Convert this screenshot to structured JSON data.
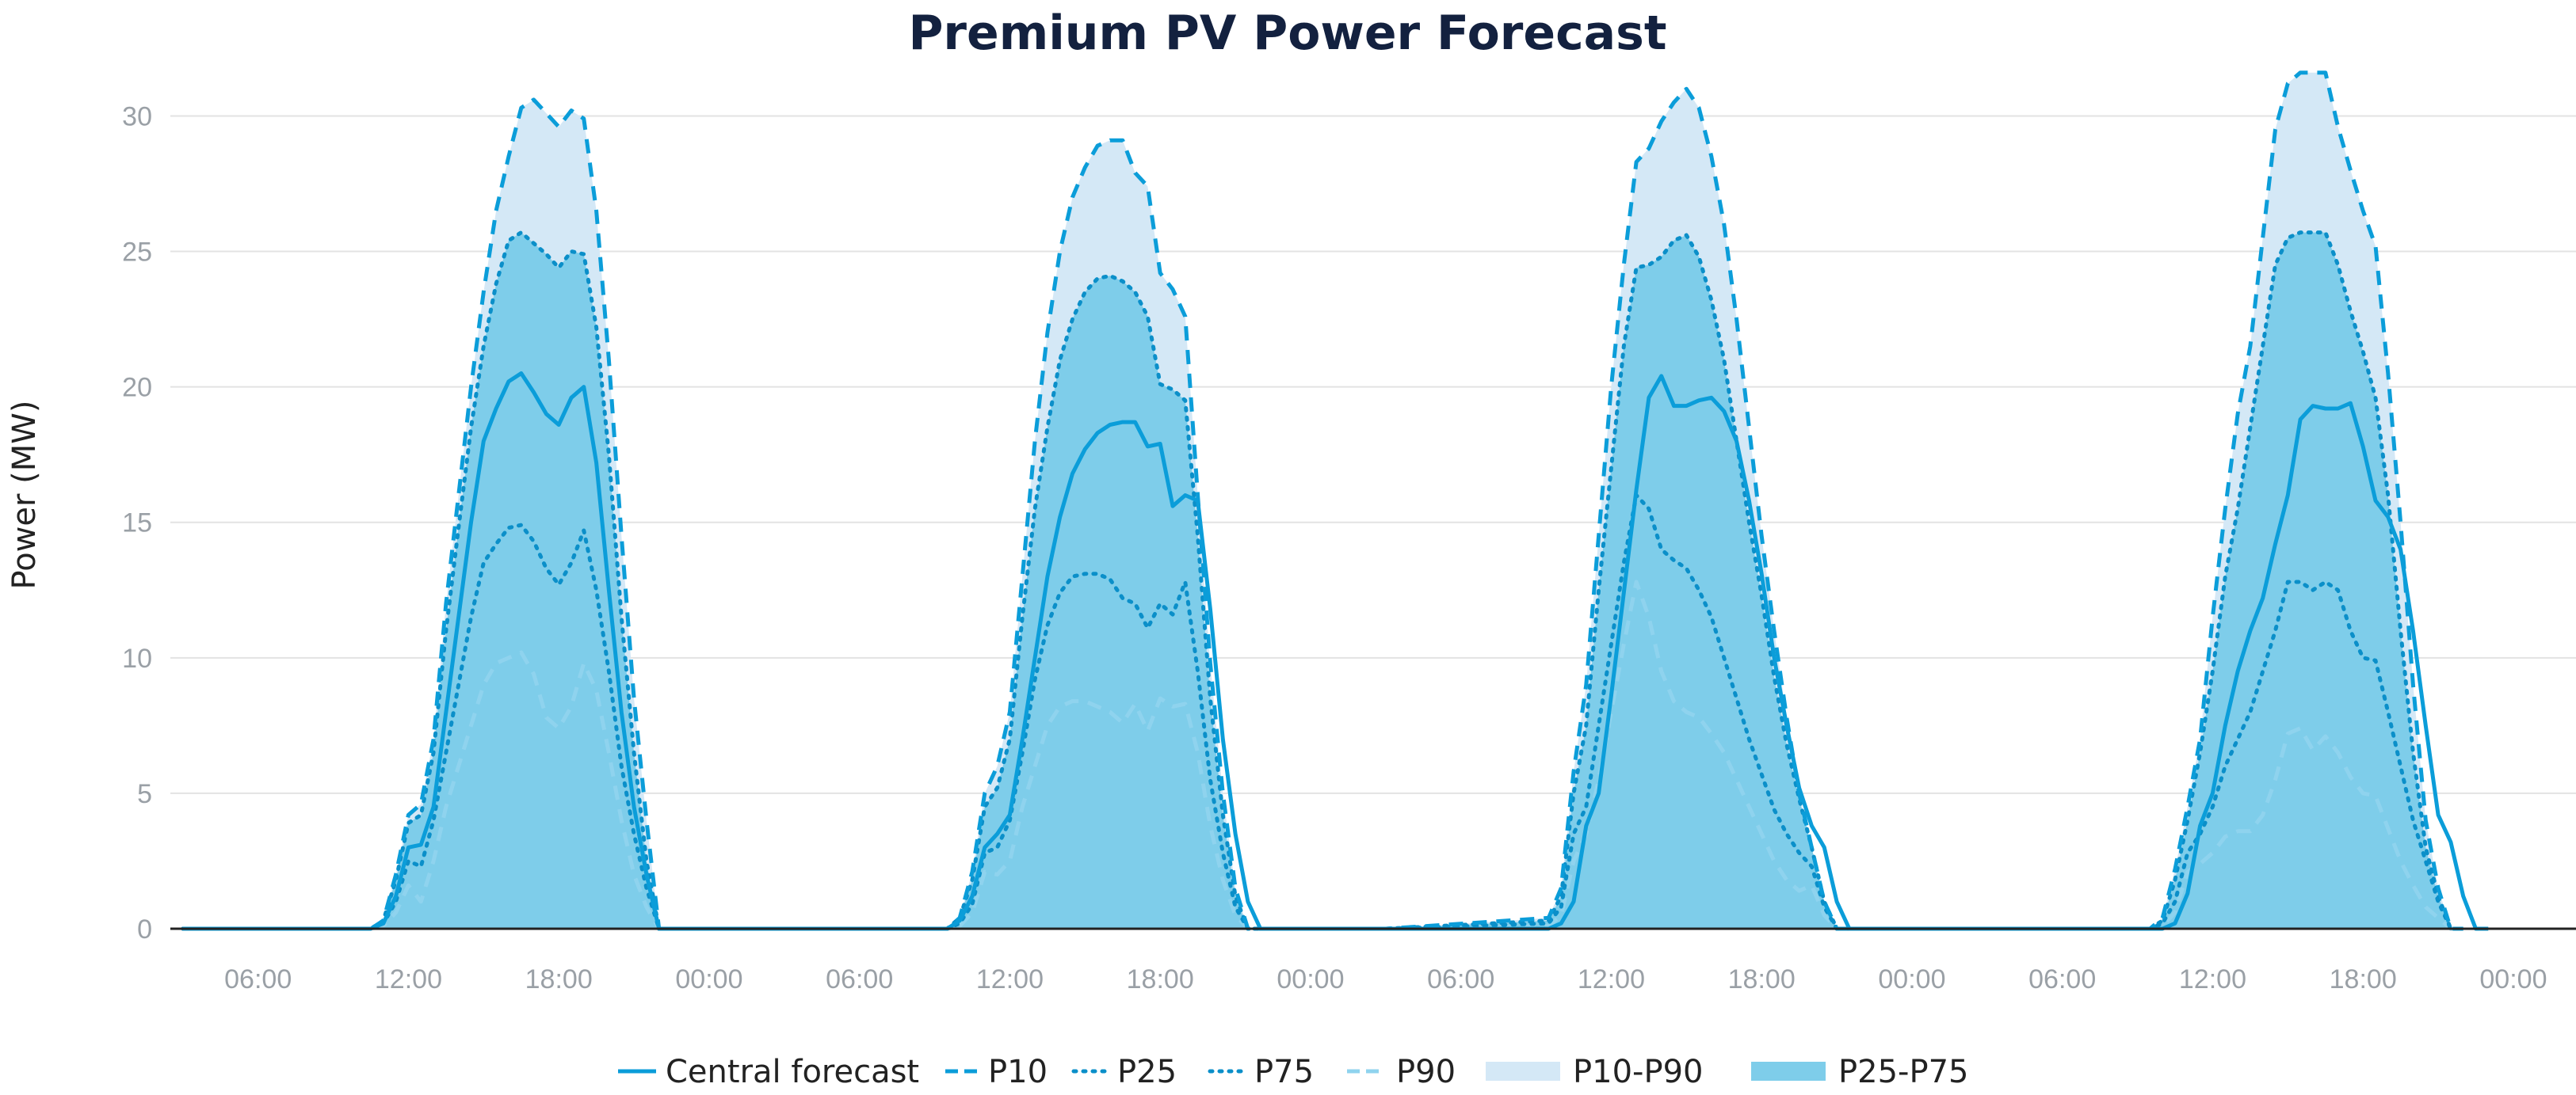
{
  "chart_data": {
    "type": "line",
    "title": "Premium PV Power Forecast",
    "xlabel": "",
    "ylabel": "Power (MW)",
    "ylim": [
      0,
      32
    ],
    "yticks": [
      0,
      5,
      10,
      15,
      20,
      25,
      30
    ],
    "xlim": [
      2.5,
      98.5
    ],
    "x_unit": "hours from first midnight",
    "xticks": [
      {
        "x": 6,
        "label": "06:00"
      },
      {
        "x": 12,
        "label": "12:00"
      },
      {
        "x": 18,
        "label": "18:00"
      },
      {
        "x": 24,
        "label": "00:00"
      },
      {
        "x": 30,
        "label": "06:00"
      },
      {
        "x": 36,
        "label": "12:00"
      },
      {
        "x": 42,
        "label": "18:00"
      },
      {
        "x": 48,
        "label": "00:00"
      },
      {
        "x": 54,
        "label": "06:00"
      },
      {
        "x": 60,
        "label": "12:00"
      },
      {
        "x": 66,
        "label": "18:00"
      },
      {
        "x": 72,
        "label": "00:00"
      },
      {
        "x": 78,
        "label": "06:00"
      },
      {
        "x": 84,
        "label": "12:00"
      },
      {
        "x": 90,
        "label": "18:00"
      },
      {
        "x": 96,
        "label": "00:00"
      }
    ],
    "grid": true,
    "legend_position": "bottom",
    "colors": {
      "central": "#0b9dd9",
      "p10": "#0b9dd9",
      "p25": "#0b8fc9",
      "p75": "#0b8fc9",
      "p90": "#8fd3ee",
      "band_p10_p90": "#d4e8f6",
      "band_p25_p75": "#7ecdea"
    },
    "series_x": [
      3,
      10,
      10.5,
      11,
      11.5,
      12,
      12.5,
      13,
      13.5,
      14,
      14.5,
      15,
      15.5,
      16,
      16.5,
      17,
      17.5,
      18,
      18.5,
      19,
      19.5,
      20,
      20.5,
      21,
      21.5,
      22,
      22.5,
      23,
      23.5,
      24,
      27,
      33.5,
      34,
      34.5,
      35,
      35.5,
      36,
      36.5,
      37,
      37.5,
      38,
      38.5,
      39,
      39.5,
      40,
      40.5,
      41,
      41.5,
      42,
      42.5,
      43,
      43.5,
      44,
      44.5,
      45,
      45.5,
      46,
      46.5,
      47,
      47.5,
      48,
      51,
      57.5,
      58,
      58.5,
      59,
      59.5,
      60,
      60.5,
      61,
      61.5,
      62,
      62.5,
      63,
      63.5,
      64,
      64.5,
      65,
      65.5,
      66,
      66.5,
      67,
      67.5,
      68,
      68.5,
      69,
      69.5,
      70,
      70.5,
      71,
      71.5,
      72,
      75,
      81.5,
      82,
      82.5,
      83,
      83.5,
      84,
      84.5,
      85,
      85.5,
      86,
      86.5,
      87,
      87.5,
      88,
      88.5,
      89,
      89.5,
      90,
      90.5,
      91,
      91.5,
      92,
      92.5,
      93,
      93.5,
      94,
      94.5,
      95,
      95.5,
      96,
      98
    ],
    "series": [
      {
        "name": "Central forecast",
        "style": "solid",
        "values": [
          0,
          0,
          0,
          0.2,
          1.2,
          3,
          3.1,
          4.5,
          8,
          11.5,
          15,
          18,
          19.2,
          20.2,
          20.5,
          19.8,
          19,
          18.6,
          19.6,
          20,
          17.2,
          12.5,
          8,
          4.5,
          2,
          0,
          0,
          0,
          0,
          0,
          0,
          0,
          0.3,
          1.2,
          3,
          3.5,
          4.2,
          7,
          10,
          13,
          15.2,
          16.8,
          17.7,
          18.3,
          18.6,
          18.7,
          18.7,
          17.8,
          17.9,
          15.6,
          16,
          15.8,
          11.8,
          7,
          3.5,
          1,
          0,
          0,
          0,
          0,
          0,
          0,
          0,
          0.2,
          1,
          3.8,
          5,
          8.6,
          12.4,
          16.2,
          19.6,
          20.4,
          19.3,
          19.3,
          19.5,
          19.6,
          19.1,
          18,
          15.8,
          13.1,
          10,
          7.5,
          5.2,
          3.8,
          3,
          1,
          0,
          0,
          0,
          0,
          0,
          0,
          0,
          0,
          0,
          0.2,
          1.3,
          3.8,
          5,
          7.5,
          9.5,
          11,
          12.2,
          14.2,
          16,
          18.8,
          19.3,
          19.2,
          19.2,
          19.4,
          17.8,
          15.8,
          15.2,
          14,
          11,
          7.5,
          4.2,
          3.2,
          1.2,
          0,
          0
        ]
      },
      {
        "name": "P10",
        "style": "dashed",
        "values": [
          0,
          0,
          0,
          0.3,
          2,
          4.2,
          4.6,
          7,
          12,
          16,
          20,
          23.5,
          26.5,
          28.5,
          30.3,
          30.6,
          30.1,
          29.6,
          30.2,
          29.9,
          26.5,
          21,
          14.5,
          8.5,
          4,
          0,
          0,
          0,
          0,
          0,
          0,
          0,
          0.4,
          2.1,
          5,
          6,
          8,
          13,
          18,
          22,
          25,
          27,
          28.1,
          28.9,
          29.1,
          29.1,
          27.9,
          27.4,
          24.2,
          23.6,
          22.6,
          16,
          9.8,
          5,
          1.5,
          0,
          0,
          0,
          0,
          0,
          0,
          0,
          0.4,
          1.5,
          5.8,
          9,
          14.5,
          20,
          24.5,
          28.3,
          28.8,
          29.8,
          30.5,
          31,
          30.3,
          28.5,
          26,
          22.5,
          18.5,
          14.5,
          11,
          7.8,
          5,
          3,
          1,
          0,
          0,
          0,
          0,
          0,
          0,
          0,
          0,
          0,
          0.4,
          2.2,
          4.5,
          7,
          11.5,
          15.5,
          19,
          21.5,
          25.5,
          29.5,
          31.2,
          31.6,
          31.6,
          31.6,
          29.6,
          28,
          26.5,
          25.2,
          20.5,
          15,
          9,
          4,
          1.5,
          0,
          0
        ]
      },
      {
        "name": "P25",
        "style": "dotted",
        "values": [
          0,
          0,
          0,
          0.3,
          1.8,
          3.9,
          4.2,
          6.5,
          11,
          14.8,
          18.5,
          21.5,
          23.8,
          25.4,
          25.7,
          25.3,
          24.9,
          24.4,
          25,
          24.9,
          22.2,
          17.5,
          11.5,
          6.5,
          2.5,
          0,
          0,
          0,
          0,
          0,
          0,
          0,
          0.4,
          1.8,
          4.5,
          5.2,
          7,
          11.5,
          15.5,
          18.5,
          21,
          22.5,
          23.5,
          24,
          24.1,
          23.9,
          23.5,
          22.6,
          20.1,
          19.9,
          19.5,
          14.5,
          8.5,
          4.2,
          1.2,
          0,
          0,
          0,
          0,
          0,
          0,
          0,
          0.3,
          1.2,
          5,
          7.5,
          12.5,
          17,
          21.5,
          24.4,
          24.5,
          24.8,
          25.4,
          25.6,
          24.8,
          23.2,
          21,
          18,
          15,
          12.3,
          9.3,
          6.8,
          4.8,
          3,
          1,
          0,
          0,
          0,
          0,
          0,
          0,
          0,
          0,
          0,
          0.3,
          1.8,
          4,
          6.5,
          9.5,
          13,
          15.5,
          18.5,
          21.5,
          24.5,
          25.5,
          25.7,
          25.7,
          25.7,
          24.5,
          22.8,
          21.3,
          19.6,
          16,
          11,
          6.5,
          3,
          1.2,
          0,
          0
        ]
      },
      {
        "name": "P75",
        "style": "dotted",
        "values": [
          0,
          0,
          0,
          0.2,
          1,
          2.5,
          2.3,
          4,
          6.5,
          9,
          11.5,
          13.5,
          14.2,
          14.8,
          14.9,
          14.3,
          13.3,
          12.7,
          13.5,
          14.7,
          12.5,
          9.5,
          6,
          3.5,
          1.5,
          0,
          0,
          0,
          0,
          0,
          0,
          0,
          0.2,
          0.9,
          2.8,
          3,
          4,
          6.5,
          9.2,
          11.2,
          12.4,
          13,
          13.1,
          13.1,
          12.9,
          12.2,
          12,
          11.1,
          12,
          11.6,
          12.8,
          9.5,
          5.5,
          2.8,
          0.8,
          0,
          0,
          0,
          0,
          0,
          0,
          0,
          0.2,
          0.8,
          3.5,
          4.5,
          7.5,
          10.5,
          13.5,
          16,
          15.5,
          14,
          13.6,
          13.3,
          12.5,
          11.5,
          10,
          8.5,
          7,
          5.7,
          4.4,
          3.5,
          2.8,
          2.3,
          0.8,
          0,
          0,
          0,
          0,
          0,
          0,
          0,
          0,
          0,
          0.2,
          1,
          2.8,
          3.5,
          4.5,
          6,
          7,
          8,
          9.5,
          11,
          12.8,
          12.8,
          12.5,
          12.8,
          12.5,
          11,
          10,
          9.9,
          8,
          6,
          4,
          2.5,
          1,
          0,
          0
        ]
      },
      {
        "name": "P90",
        "style": "dashed",
        "values": [
          0,
          0,
          0,
          0.1,
          0.6,
          1.6,
          1,
          2.5,
          4.5,
          6,
          7.5,
          9,
          9.8,
          10,
          10.2,
          9.4,
          7.8,
          7.4,
          8.2,
          9.8,
          8.8,
          6.5,
          4,
          2,
          0.8,
          0,
          0,
          0,
          0,
          0,
          0,
          0,
          0.1,
          0.6,
          2.1,
          2,
          2.5,
          4.5,
          6,
          7.5,
          8.2,
          8.4,
          8.4,
          8.2,
          8,
          7.6,
          8.3,
          7.3,
          8.5,
          8.2,
          8.3,
          6.5,
          3.8,
          1.8,
          0.5,
          0,
          0,
          0,
          0,
          0,
          0,
          0,
          0.1,
          0.5,
          2.5,
          3.5,
          5.5,
          8,
          10.5,
          12.8,
          11.5,
          9.5,
          8.4,
          8,
          7.8,
          7.2,
          6.5,
          5.5,
          4.5,
          3.5,
          2.5,
          1.8,
          1.4,
          1.6,
          0.5,
          0,
          0,
          0,
          0,
          0,
          0,
          0,
          0,
          0,
          0.1,
          0.6,
          2.1,
          2.4,
          2.8,
          3.4,
          3.6,
          3.6,
          4.2,
          5.5,
          7.2,
          7.4,
          6.6,
          7.1,
          6.5,
          5.6,
          5,
          4.9,
          3.7,
          2.5,
          1.6,
          0.8,
          0.4,
          0,
          0
        ]
      }
    ],
    "legend": [
      {
        "key": "central",
        "label": "Central forecast",
        "kind": "solid"
      },
      {
        "key": "p10",
        "label": "P10",
        "kind": "dashed"
      },
      {
        "key": "p25",
        "label": "P25",
        "kind": "dotted"
      },
      {
        "key": "p75",
        "label": "P75",
        "kind": "dotted"
      },
      {
        "key": "p90",
        "label": "P90",
        "kind": "dashed"
      },
      {
        "key": "band_p10_p90",
        "label": "P10-P90",
        "kind": "band"
      },
      {
        "key": "band_p25_p75",
        "label": "P25-P75",
        "kind": "band"
      }
    ]
  }
}
